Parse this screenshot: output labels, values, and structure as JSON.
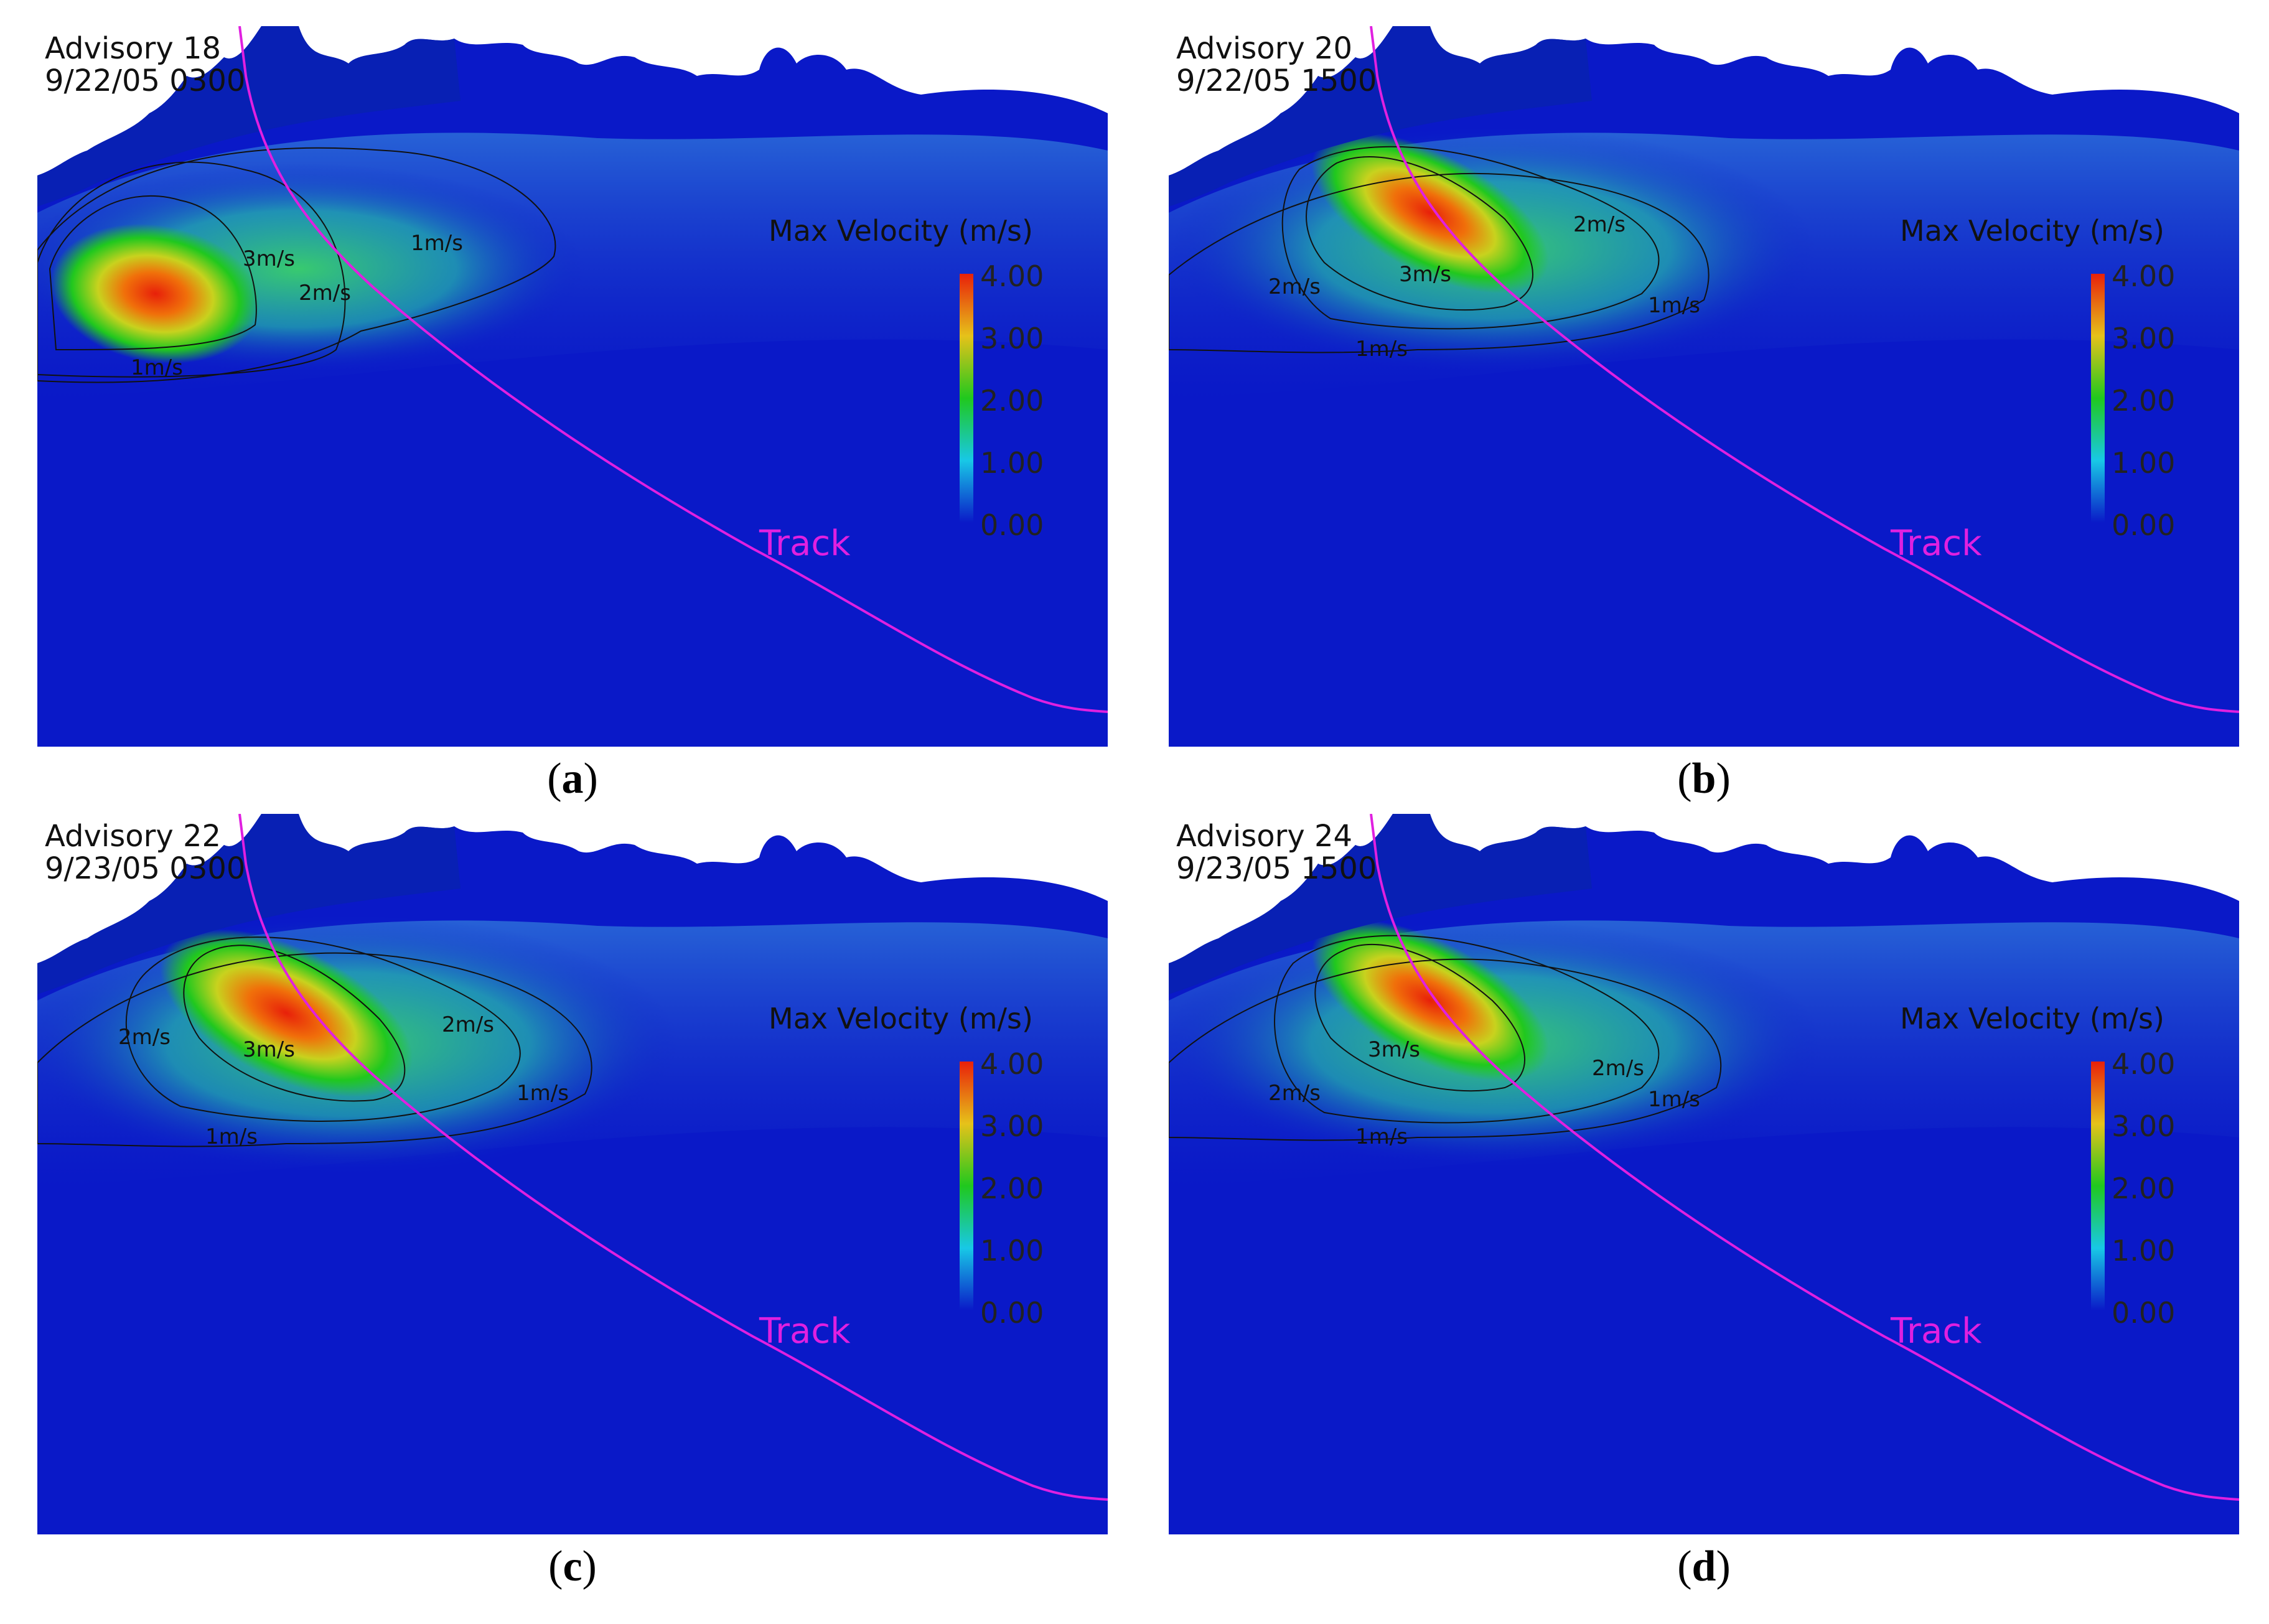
{
  "colors": {
    "ocean_deep": "#0a19c8",
    "land": "#ffffff",
    "track": "#e020e0",
    "contour": "#111111",
    "scale_high": "#e8200a",
    "scale_mid": "#20c81e",
    "scale_low": "#0a19c8"
  },
  "colorbar": {
    "title": "Max Velocity  (m/s)",
    "ticks": [
      "4.00",
      "3.00",
      "2.00",
      "1.00",
      "0.00"
    ]
  },
  "track_label": "Track",
  "panels": [
    {
      "id": "a",
      "caption": "a",
      "advisory": "Advisory 18",
      "datetime": "9/22/05 0300",
      "contour_labels": [
        "3m/s",
        "2m/s",
        "1m/s",
        "1m/s"
      ]
    },
    {
      "id": "b",
      "caption": "b",
      "advisory": "Advisory 20",
      "datetime": "9/22/05 1500",
      "contour_labels": [
        "2m/s",
        "3m/s",
        "2m/s",
        "1m/s",
        "1m/s"
      ]
    },
    {
      "id": "c",
      "caption": "c",
      "advisory": "Advisory 22",
      "datetime": "9/23/05 0300",
      "contour_labels": [
        "2m/s",
        "3m/s",
        "2m/s",
        "1m/s",
        "1m/s"
      ]
    },
    {
      "id": "d",
      "caption": "d",
      "advisory": "Advisory 24",
      "datetime": "9/23/05 1500",
      "contour_labels": [
        "3m/s",
        "2m/s",
        "2m/s",
        "1m/s",
        "1m/s"
      ]
    }
  ]
}
